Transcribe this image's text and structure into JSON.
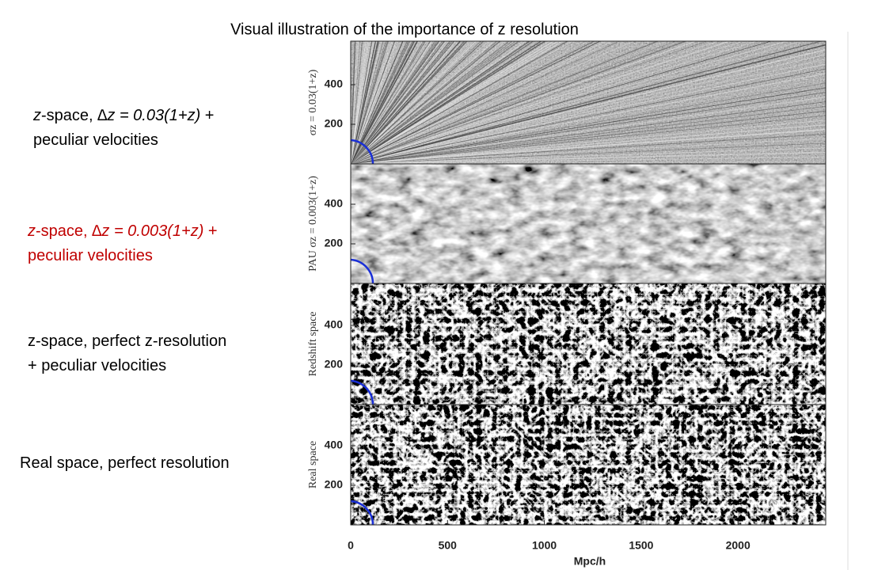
{
  "title": "Visual illustration of the importance of z resolution",
  "side_labels": [
    {
      "color": "#000000",
      "lines": [
        [
          {
            "text": "z",
            "italic": true
          },
          {
            "text": "-space, ",
            "italic": false
          },
          {
            "text": "∆z = 0.03(1+z)",
            "italic": true
          },
          {
            "text": " +",
            "italic": false
          }
        ],
        [
          {
            "text": "peculiar velocities",
            "italic": false
          }
        ]
      ]
    },
    {
      "color": "#c00000",
      "lines": [
        [
          {
            "text": "z",
            "italic": true
          },
          {
            "text": "-space, ",
            "italic": false
          },
          {
            "text": "∆z = 0.003(1+z)",
            "italic": true
          },
          {
            "text": " +",
            "italic": false
          }
        ],
        [
          {
            "text": "peculiar velocities",
            "italic": false
          }
        ]
      ]
    },
    {
      "color": "#000000",
      "lines": [
        [
          {
            "text": "z-space, perfect z-resolution",
            "italic": false
          }
        ],
        [
          {
            "text": "+ peculiar velocities",
            "italic": false
          }
        ]
      ]
    },
    {
      "color": "#000000",
      "lines": [
        [
          {
            "text": "Real space, perfect resolution",
            "italic": false
          }
        ]
      ]
    }
  ],
  "figure": {
    "panels": [
      {
        "label": "σz = 0.03(1+z)",
        "yticks": [
          200,
          400
        ]
      },
      {
        "label": "PAU  σz = 0.003(1+z)",
        "yticks": [
          200,
          400
        ]
      },
      {
        "label": "Redshift  space",
        "yticks": [
          200,
          400
        ]
      },
      {
        "label": "Real  space",
        "yticks": [
          200,
          400
        ]
      }
    ],
    "xticks": [
      0,
      500,
      1000,
      1500,
      2000
    ],
    "xlabel": "Mpc/h"
  }
}
